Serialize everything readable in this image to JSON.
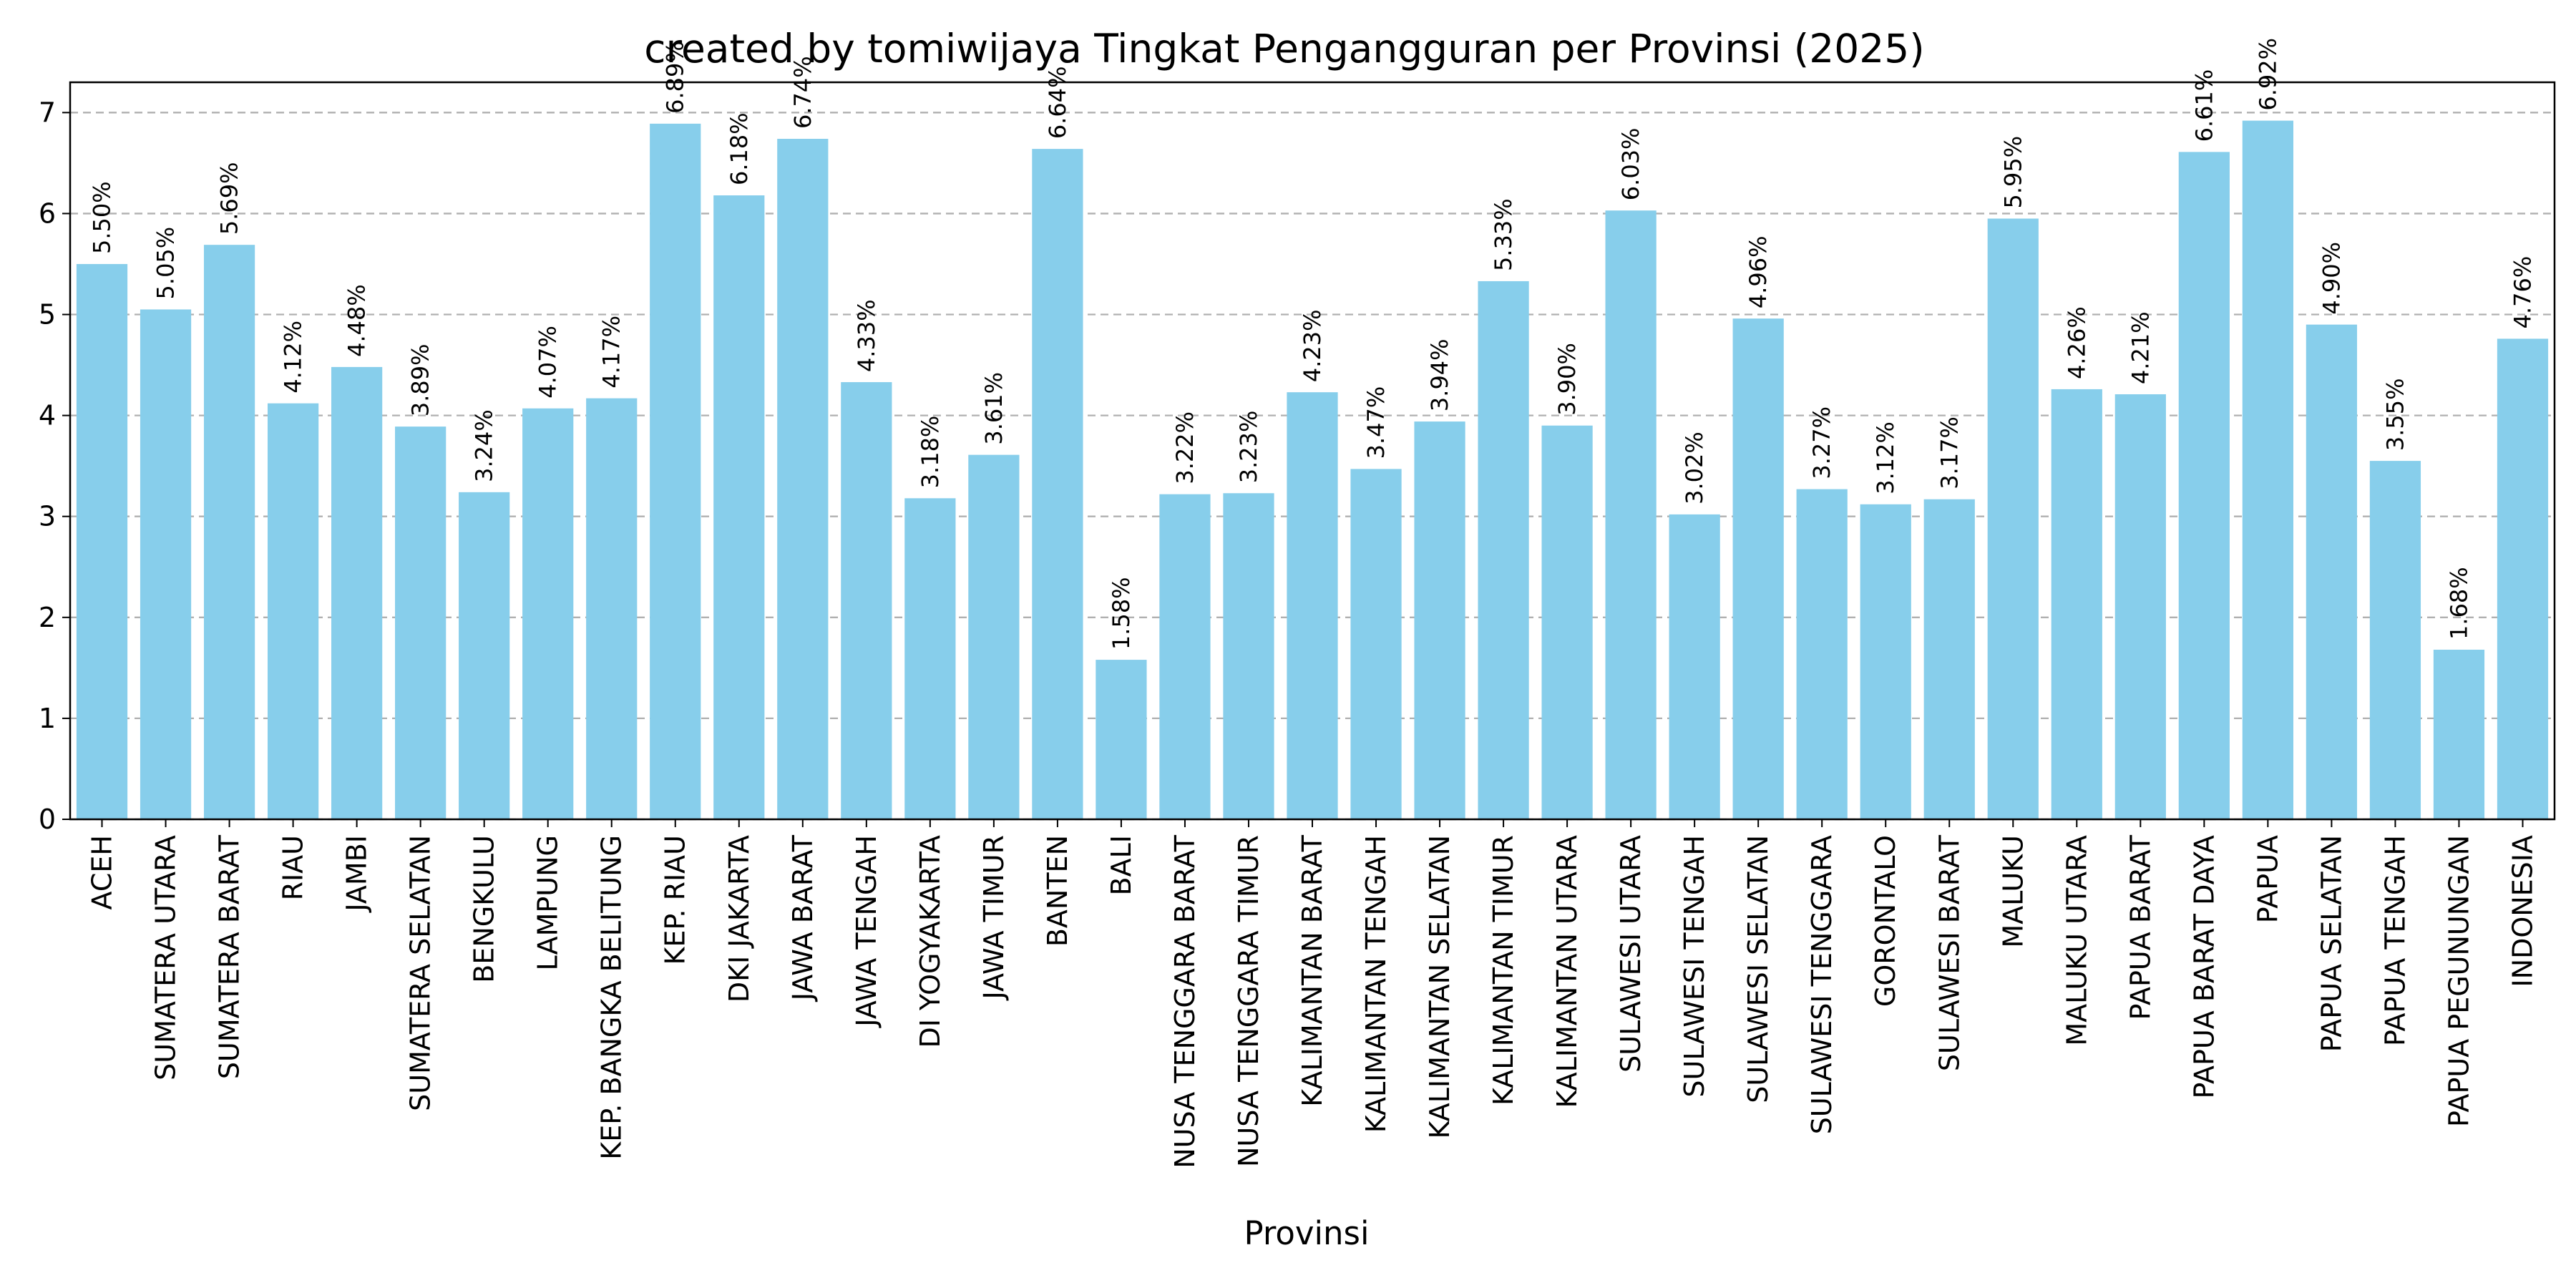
{
  "chart_data": {
    "type": "bar",
    "title": "created by tomiwijaya  Tingkat Pengangguran per Provinsi (2025)",
    "xlabel": "Provinsi",
    "ylabel": "",
    "ylim": [
      0,
      7.3
    ],
    "yticks": [
      0,
      1,
      2,
      3,
      4,
      5,
      6,
      7
    ],
    "grid": "y",
    "bar_color": "#87ceeb",
    "categories": [
      "ACEH",
      "SUMATERA UTARA",
      "SUMATERA BARAT",
      "RIAU",
      "JAMBI",
      "SUMATERA SELATAN",
      "BENGKULU",
      "LAMPUNG",
      "KEP. BANGKA BELITUNG",
      "KEP. RIAU",
      "DKI JAKARTA",
      "JAWA BARAT",
      "JAWA TENGAH",
      "DI YOGYAKARTA",
      "JAWA TIMUR",
      "BANTEN",
      "BALI",
      "NUSA TENGGARA BARAT",
      "NUSA TENGGARA TIMUR",
      "KALIMANTAN BARAT",
      "KALIMANTAN TENGAH",
      "KALIMANTAN SELATAN",
      "KALIMANTAN TIMUR",
      "KALIMANTAN UTARA",
      "SULAWESI UTARA",
      "SULAWESI TENGAH",
      "SULAWESI SELATAN",
      "SULAWESI TENGGARA",
      "GORONTALO",
      "SULAWESI BARAT",
      "MALUKU",
      "MALUKU UTARA",
      "PAPUA BARAT",
      "PAPUA BARAT DAYA",
      "PAPUA",
      "PAPUA SELATAN",
      "PAPUA TENGAH",
      "PAPUA PEGUNUNGAN",
      "INDONESIA"
    ],
    "values": [
      5.5,
      5.05,
      5.69,
      4.12,
      4.48,
      3.89,
      3.24,
      4.07,
      4.17,
      6.89,
      6.18,
      6.74,
      4.33,
      3.18,
      3.61,
      6.64,
      1.58,
      3.22,
      3.23,
      4.23,
      3.47,
      3.94,
      5.33,
      3.9,
      6.03,
      3.02,
      4.96,
      3.27,
      3.12,
      3.17,
      5.95,
      4.26,
      4.21,
      6.61,
      6.92,
      4.9,
      3.55,
      1.68,
      4.76
    ],
    "value_labels": [
      "5.50%",
      "5.05%",
      "5.69%",
      "4.12%",
      "4.48%",
      "3.89%",
      "3.24%",
      "4.07%",
      "4.17%",
      "6.89%",
      "6.18%",
      "6.74%",
      "4.33%",
      "3.18%",
      "3.61%",
      "6.64%",
      "1.58%",
      "3.22%",
      "3.23%",
      "4.23%",
      "3.47%",
      "3.94%",
      "5.33%",
      "3.90%",
      "6.03%",
      "3.02%",
      "4.96%",
      "3.27%",
      "3.12%",
      "3.17%",
      "5.95%",
      "4.26%",
      "4.21%",
      "6.61%",
      "6.92%",
      "4.90%",
      "3.55%",
      "1.68%",
      "4.76%"
    ]
  }
}
